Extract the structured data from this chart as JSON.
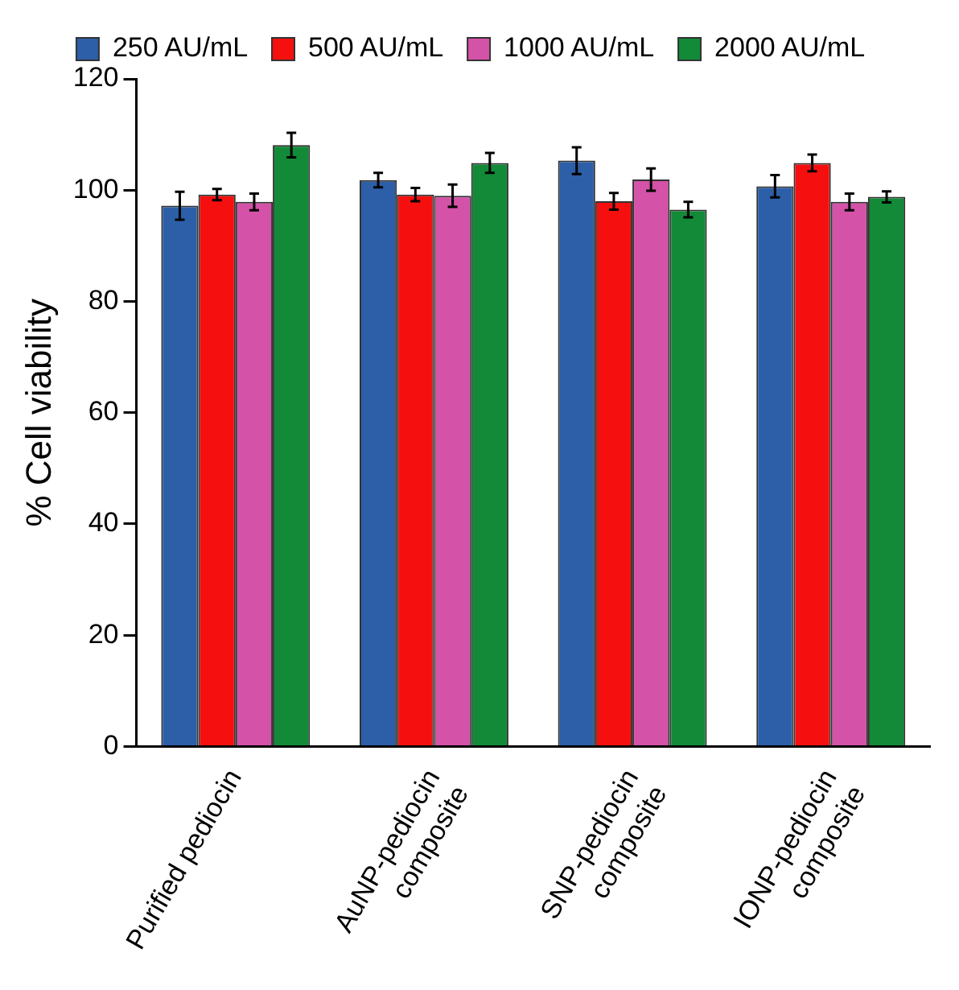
{
  "chart_data": {
    "type": "bar",
    "ylabel": "% Cell viability",
    "categories": [
      "Purified pediocin",
      "AuNP-pediocin\ncomposite",
      "SNP-pediocin\ncomposite",
      "IONP-pediocin\ncomposite"
    ],
    "series": [
      {
        "name": "250 AU/mL",
        "color": "#2c5fa8",
        "values": [
          97.2,
          101.8,
          105.3,
          100.7
        ],
        "errors": [
          2.5,
          1.3,
          2.4,
          2
        ]
      },
      {
        "name": "500 AU/mL",
        "color": "#f5100f",
        "values": [
          99.2,
          99.2,
          98,
          104.9
        ],
        "errors": [
          1,
          1.2,
          1.5,
          1.5
        ]
      },
      {
        "name": "1000 AU/mL",
        "color": "#d452a8",
        "values": [
          97.9,
          99,
          101.9,
          97.9
        ],
        "errors": [
          1.5,
          2,
          2,
          1.5
        ]
      },
      {
        "name": "2000 AU/mL",
        "color": "#128a38",
        "values": [
          108.1,
          104.9,
          96.5,
          98.8
        ],
        "errors": [
          2.2,
          1.8,
          1.4,
          1
        ]
      }
    ],
    "ylim": [
      0,
      120
    ],
    "yticks": [
      0,
      20,
      40,
      60,
      80,
      100,
      120
    ],
    "grid": false,
    "legend": "top"
  }
}
